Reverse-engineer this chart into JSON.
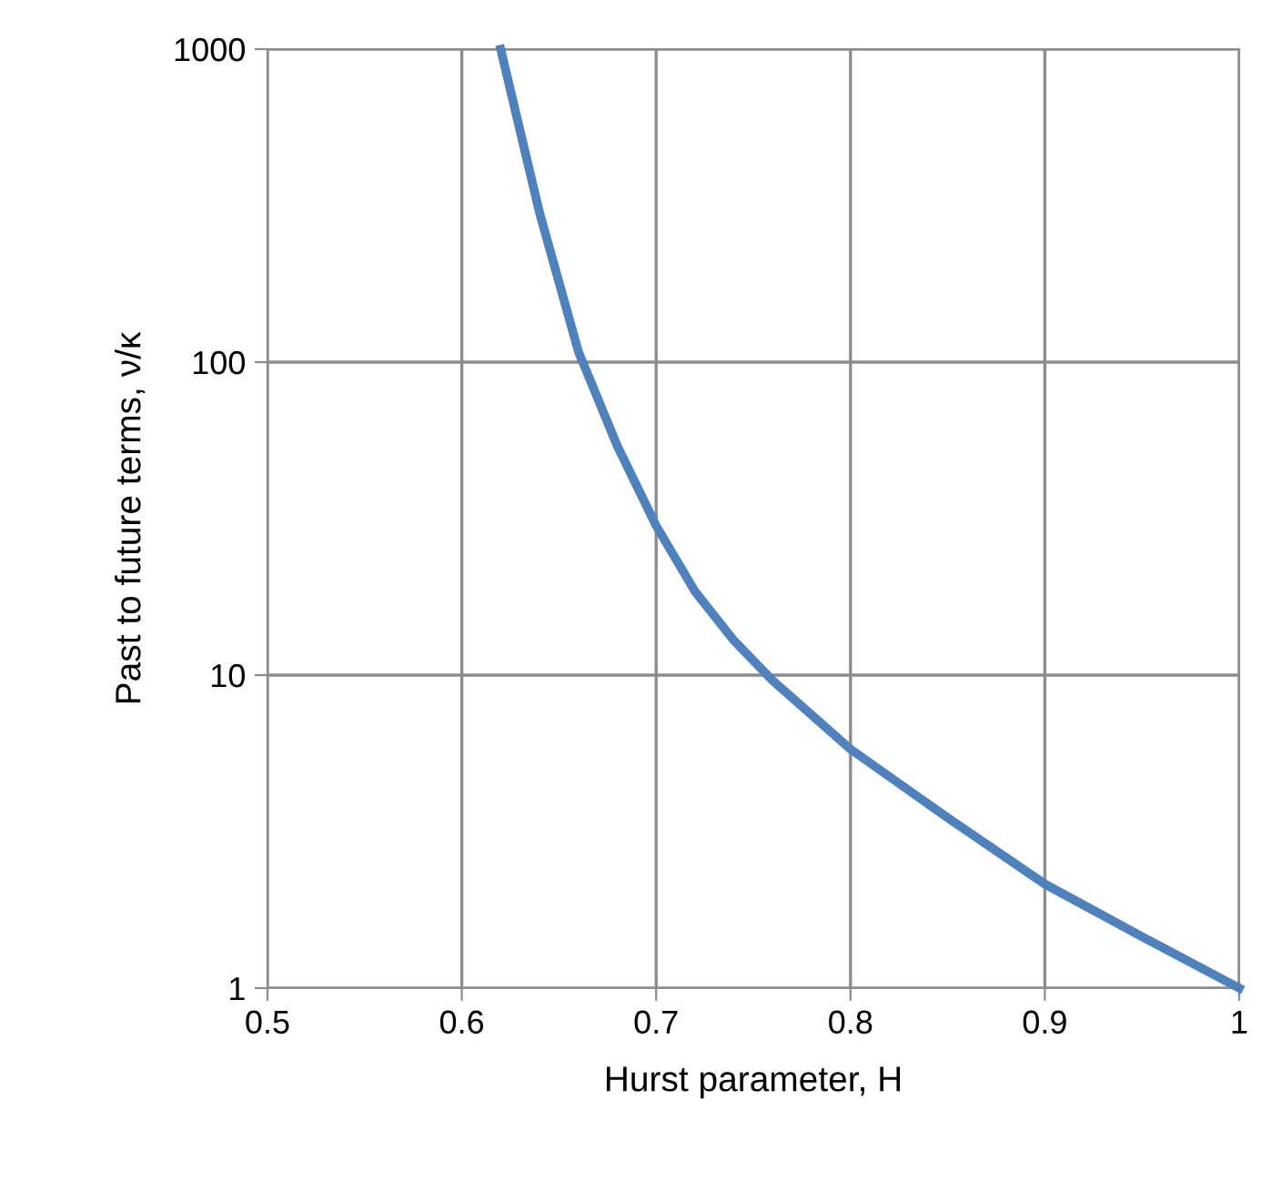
{
  "chart_data": {
    "type": "line",
    "xlabel": "Hurst parameter, H",
    "ylabel": "Past to future terms, ν/κ",
    "x": [
      0.62,
      0.64,
      0.66,
      0.68,
      0.7,
      0.72,
      0.74,
      0.76,
      0.8,
      0.85,
      0.9,
      0.95,
      1.0
    ],
    "series": [
      {
        "color": "#4f81bd",
        "values": [
          1000,
          300,
          108,
          54,
          30,
          18.5,
          12.9,
          9.6,
          5.8,
          3.5,
          2.15,
          1.46,
          1
        ]
      }
    ],
    "xlim": [
      0.5,
      1
    ],
    "xticks": [
      0.5,
      0.6,
      0.7,
      0.8,
      0.9,
      1
    ],
    "ylim": [
      1,
      1000
    ],
    "yticks": [
      1,
      10,
      100,
      1000
    ],
    "log": "y",
    "grid": true,
    "marker": "none",
    "line_style": "solid"
  }
}
